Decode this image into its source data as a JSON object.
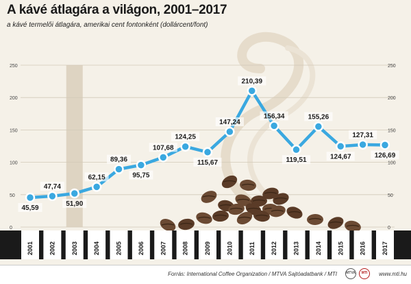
{
  "title": "A kávé átlagára a világon, 2001–2017",
  "subtitle": "a kávé termelői átlagára, amerikai cent fontonként (dollárcent/font)",
  "source": "Forrás: International Coffee Organization / MTVA Sajtóadatbank / MTI",
  "site": "www.mti.hu",
  "logos": [
    "MTVA",
    "MTI"
  ],
  "colors": {
    "line": "#3aa8e0",
    "marker_fill": "#3aa8e0",
    "background": "#f5f1e8",
    "year_band": "#1a1a1a"
  },
  "chart_data": {
    "type": "line",
    "title": "A kávé átlagára a világon, 2001–2017",
    "subtitle": "a kávé termelői átlagára, amerikai cent fontonként (dollárcent/font)",
    "xlabel": "",
    "ylabel": "",
    "ylim": [
      0,
      250
    ],
    "yticks": [
      0,
      50,
      100,
      150,
      200,
      250
    ],
    "grid": true,
    "categories": [
      "2001",
      "2002",
      "2003",
      "2004",
      "2005",
      "2006",
      "2007",
      "2008",
      "2009",
      "2010",
      "2011",
      "2012",
      "2013",
      "2014",
      "2015",
      "2016",
      "2017"
    ],
    "series": [
      {
        "values": [
          45.59,
          47.74,
          51.9,
          62.15,
          89.36,
          95.75,
          107.68,
          124.25,
          115.67,
          147.24,
          210.39,
          156.34,
          119.51,
          155.26,
          124.67,
          127.31,
          126.69
        ]
      }
    ],
    "data_labels": [
      "45,59",
      "47,74",
      "51,90",
      "62,15",
      "89,36",
      "95,75",
      "107,68",
      "124,25",
      "115,67",
      "147,24",
      "210,39",
      "156,34",
      "119,51",
      "155,26",
      "124,67",
      "127,31",
      "126,69"
    ],
    "label_positions": [
      "below",
      "above",
      "below",
      "above",
      "above",
      "below",
      "above",
      "above",
      "below",
      "above",
      "above",
      "above",
      "below",
      "above",
      "below",
      "above",
      "below"
    ]
  }
}
